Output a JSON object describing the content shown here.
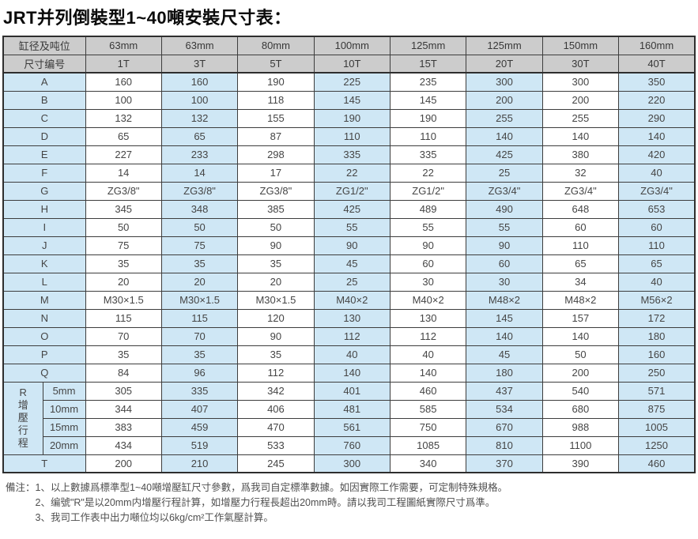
{
  "title": "JRT并列倒裝型1~40噸安裝尺寸表：",
  "colors": {
    "header_gray": "#cccccc",
    "cell_blue": "#cfe7f5",
    "cell_white": "#ffffff",
    "border": "#3d3d3d",
    "border_heavy": "#2e2e2e",
    "text": "#454545",
    "title_text": "#0a0a0a"
  },
  "table": {
    "header_rows": [
      {
        "label": "缸径及吨位",
        "values": [
          "63mm",
          "63mm",
          "80mm",
          "100mm",
          "125mm",
          "125mm",
          "150mm",
          "160mm"
        ]
      },
      {
        "label": "尺寸编号",
        "values": [
          "1T",
          "3T",
          "5T",
          "10T",
          "15T",
          "20T",
          "30T",
          "40T"
        ]
      }
    ],
    "r_group": {
      "letter": "R",
      "vertical_label": "增壓行程"
    },
    "rows": [
      {
        "label": "A",
        "values": [
          "160",
          "160",
          "190",
          "225",
          "235",
          "300",
          "300",
          "350"
        ]
      },
      {
        "label": "B",
        "values": [
          "100",
          "100",
          "118",
          "145",
          "145",
          "200",
          "200",
          "220"
        ]
      },
      {
        "label": "C",
        "values": [
          "132",
          "132",
          "155",
          "190",
          "190",
          "255",
          "255",
          "290"
        ]
      },
      {
        "label": "D",
        "values": [
          "65",
          "65",
          "87",
          "110",
          "110",
          "140",
          "140",
          "140"
        ]
      },
      {
        "label": "E",
        "values": [
          "227",
          "233",
          "298",
          "335",
          "335",
          "425",
          "380",
          "420"
        ]
      },
      {
        "label": "F",
        "values": [
          "14",
          "14",
          "17",
          "22",
          "22",
          "25",
          "32",
          "40"
        ]
      },
      {
        "label": "G",
        "values": [
          "ZG3/8\"",
          "ZG3/8\"",
          "ZG3/8\"",
          "ZG1/2\"",
          "ZG1/2\"",
          "ZG3/4\"",
          "ZG3/4\"",
          "ZG3/4\""
        ]
      },
      {
        "label": "H",
        "values": [
          "345",
          "348",
          "385",
          "425",
          "489",
          "490",
          "648",
          "653"
        ]
      },
      {
        "label": "I",
        "values": [
          "50",
          "50",
          "50",
          "55",
          "55",
          "55",
          "60",
          "60"
        ]
      },
      {
        "label": "J",
        "values": [
          "75",
          "75",
          "90",
          "90",
          "90",
          "90",
          "110",
          "110"
        ]
      },
      {
        "label": "K",
        "values": [
          "35",
          "35",
          "35",
          "45",
          "60",
          "60",
          "65",
          "65"
        ]
      },
      {
        "label": "L",
        "values": [
          "20",
          "20",
          "20",
          "25",
          "30",
          "30",
          "34",
          "40"
        ]
      },
      {
        "label": "M",
        "values": [
          "M30×1.5",
          "M30×1.5",
          "M30×1.5",
          "M40×2",
          "M40×2",
          "M48×2",
          "M48×2",
          "M56×2"
        ]
      },
      {
        "label": "N",
        "values": [
          "115",
          "115",
          "120",
          "130",
          "130",
          "145",
          "157",
          "172"
        ]
      },
      {
        "label": "O",
        "values": [
          "70",
          "70",
          "90",
          "112",
          "112",
          "140",
          "140",
          "180"
        ]
      },
      {
        "label": "P",
        "values": [
          "35",
          "35",
          "35",
          "40",
          "40",
          "45",
          "50",
          "160"
        ]
      },
      {
        "label": "Q",
        "values": [
          "84",
          "96",
          "112",
          "140",
          "140",
          "180",
          "200",
          "250"
        ]
      },
      {
        "label": "5mm",
        "group": "R",
        "values": [
          "305",
          "335",
          "342",
          "401",
          "460",
          "437",
          "540",
          "571"
        ]
      },
      {
        "label": "10mm",
        "group": "R",
        "values": [
          "344",
          "407",
          "406",
          "481",
          "585",
          "534",
          "680",
          "875"
        ]
      },
      {
        "label": "15mm",
        "group": "R",
        "values": [
          "383",
          "459",
          "470",
          "561",
          "750",
          "670",
          "988",
          "1005"
        ]
      },
      {
        "label": "20mm",
        "group": "R",
        "values": [
          "434",
          "519",
          "533",
          "760",
          "1085",
          "810",
          "1100",
          "1250"
        ]
      },
      {
        "label": "T",
        "values": [
          "200",
          "210",
          "245",
          "300",
          "340",
          "370",
          "390",
          "460"
        ]
      }
    ]
  },
  "notes": {
    "prefix": "備注：",
    "items": [
      "1、以上數據爲標準型1~40噸增壓缸尺寸參數，爲我司自定標準數據。如因實際工作需要，可定制特殊規格。",
      "2、编號\"R\"是以20mm内增壓行程計算，如增壓力行程長超出20mm時。請以我司工程圖紙實際尺寸爲準。",
      "3、我司工作表中出力噸位均以6kg/cm²工作氣壓計算。"
    ]
  }
}
